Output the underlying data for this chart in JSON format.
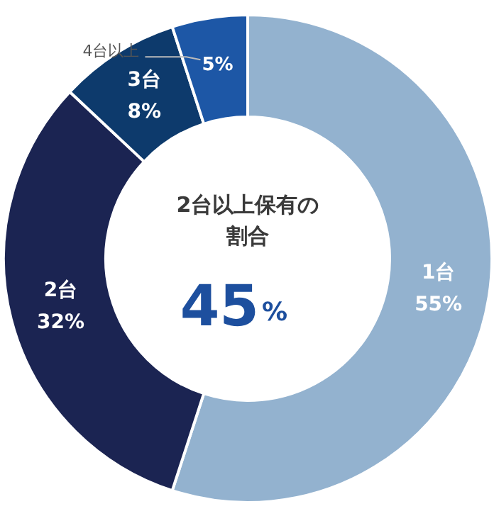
{
  "chart_data": {
    "type": "donut",
    "categories": [
      "1台",
      "2台",
      "3台",
      "4台以上"
    ],
    "values": [
      55,
      32,
      8,
      5
    ],
    "value_labels": [
      "55%",
      "32%",
      "8%",
      "5%"
    ],
    "colors": [
      "#93b2cf",
      "#1b2452",
      "#0d3a6c",
      "#1d57a6"
    ],
    "annotations": [
      "2台以上保有の",
      "割合",
      "45%"
    ]
  }
}
